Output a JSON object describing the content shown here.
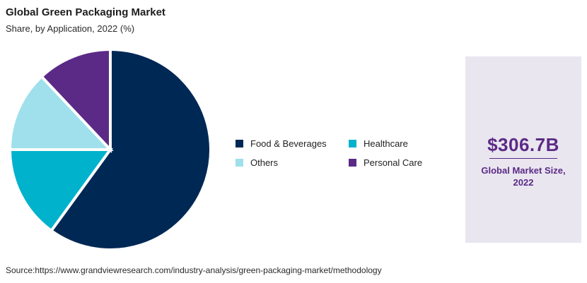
{
  "chart_data": {
    "type": "pie",
    "title": "Global Green Packaging Market",
    "subtitle": "Share, by Application, 2022 (%)",
    "categories": [
      "Food & Beverages",
      "Healthcare",
      "Others",
      "Personal Care"
    ],
    "values": [
      60,
      15,
      13,
      12
    ],
    "colors": [
      "#002855",
      "#00b2cc",
      "#9fe0ec",
      "#5b2a86"
    ],
    "legend_position": "right",
    "legend": [
      {
        "label": "Food & Beverages",
        "color": "#002855"
      },
      {
        "label": "Healthcare",
        "color": "#00b2cc"
      },
      {
        "label": "Others",
        "color": "#9fe0ec"
      },
      {
        "label": "Personal Care",
        "color": "#5b2a86"
      }
    ]
  },
  "stat": {
    "value": "$306.7B",
    "label": "Global Market Size, 2022"
  },
  "source": "Source:https://www.grandviewresearch.com/industry-analysis/green-packaging-market/methodology"
}
